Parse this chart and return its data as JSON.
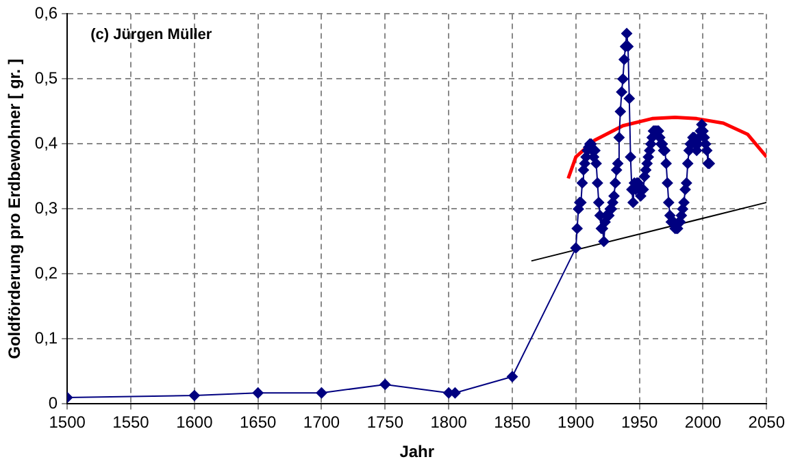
{
  "chart_data": {
    "type": "line",
    "xlabel": "Jahr",
    "ylabel": "Goldförderung pro Erdbewohner [ gr. ]",
    "annotations": [
      "(c) Jürgen Müller"
    ],
    "xlim": [
      1500,
      2050
    ],
    "xticks": [
      1500,
      1550,
      1600,
      1650,
      1700,
      1750,
      1800,
      1850,
      1900,
      1950,
      2000,
      2050
    ],
    "ylim": [
      0,
      0.6
    ],
    "yticks": [
      0,
      {
        "value": 0.1,
        "label": "0,1"
      },
      {
        "value": 0.2,
        "label": "0,2"
      },
      {
        "value": 0.3,
        "label": "0,3"
      },
      {
        "value": 0.4,
        "label": "0,4"
      },
      {
        "value": 0.5,
        "label": "0,5"
      },
      {
        "value": 0.6,
        "label": "0,6"
      }
    ],
    "grid": true,
    "legend": false,
    "marker": "diamond",
    "line_style": "solid",
    "series": [
      {
        "color": "#000080",
        "x": [
          1500,
          1600,
          1650,
          1700,
          1750,
          1800,
          1805,
          1850,
          1900,
          1901,
          1902,
          1903,
          1904,
          1905,
          1906,
          1907,
          1908,
          1909,
          1910,
          1911,
          1912,
          1913,
          1914,
          1915,
          1916,
          1917,
          1918,
          1919,
          1920,
          1921,
          1922,
          1923,
          1924,
          1925,
          1926,
          1927,
          1928,
          1929,
          1930,
          1931,
          1932,
          1933,
          1934,
          1935,
          1936,
          1937,
          1938,
          1939,
          1940,
          1941,
          1942,
          1943,
          1944,
          1945,
          1946,
          1947,
          1948,
          1949,
          1950,
          1951,
          1952,
          1953,
          1954,
          1955,
          1956,
          1957,
          1958,
          1959,
          1960,
          1961,
          1962,
          1963,
          1964,
          1965,
          1966,
          1967,
          1968,
          1969,
          1970,
          1971,
          1972,
          1973,
          1974,
          1975,
          1976,
          1977,
          1978,
          1979,
          1980,
          1981,
          1982,
          1983,
          1984,
          1985,
          1986,
          1987,
          1988,
          1989,
          1990,
          1991,
          1992,
          1993,
          1994,
          1995,
          1996,
          1997,
          1998,
          1999,
          2000,
          2001,
          2002,
          2003,
          2004,
          2005
        ],
        "values": [
          0.01,
          0.013,
          0.017,
          0.017,
          0.03,
          0.017,
          0.017,
          0.042,
          0.24,
          0.27,
          0.3,
          0.31,
          0.31,
          0.34,
          0.36,
          0.37,
          0.38,
          0.39,
          0.395,
          0.4,
          0.4,
          0.39,
          0.38,
          0.39,
          0.37,
          0.34,
          0.31,
          0.29,
          0.27,
          0.27,
          0.25,
          0.28,
          0.29,
          0.29,
          0.29,
          0.3,
          0.3,
          0.31,
          0.32,
          0.34,
          0.36,
          0.37,
          0.41,
          0.45,
          0.48,
          0.5,
          0.53,
          0.55,
          0.57,
          0.55,
          0.47,
          0.38,
          0.33,
          0.31,
          0.34,
          0.33,
          0.34,
          0.34,
          0.33,
          0.32,
          0.33,
          0.33,
          0.35,
          0.36,
          0.37,
          0.38,
          0.39,
          0.4,
          0.41,
          0.42,
          0.42,
          0.42,
          0.42,
          0.42,
          0.41,
          0.4,
          0.4,
          0.39,
          0.39,
          0.37,
          0.34,
          0.31,
          0.29,
          0.28,
          0.28,
          0.28,
          0.27,
          0.27,
          0.27,
          0.28,
          0.28,
          0.29,
          0.3,
          0.31,
          0.33,
          0.34,
          0.37,
          0.39,
          0.4,
          0.4,
          0.41,
          0.41,
          0.4,
          0.39,
          0.4,
          0.41,
          0.42,
          0.43,
          0.42,
          0.41,
          0.4,
          0.39,
          0.37,
          0.37
        ]
      },
      {
        "type": "line",
        "color": "#000000",
        "marker": "none",
        "x": [
          1865,
          2050
        ],
        "values": [
          0.22,
          0.31
        ]
      },
      {
        "type": "line",
        "color": "#ff0000",
        "marker": "none",
        "x": [
          1894,
          1900,
          1915,
          1937,
          1960,
          1978,
          1995,
          2016,
          2035,
          2050
        ],
        "values": [
          0.347,
          0.38,
          0.406,
          0.428,
          0.439,
          0.441,
          0.439,
          0.432,
          0.415,
          0.38
        ]
      }
    ]
  }
}
